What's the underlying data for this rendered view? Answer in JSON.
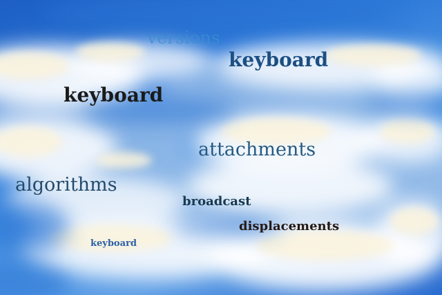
{
  "photo": {
    "subject": "sky-with-clouds",
    "colors": {
      "sky_deep": "#1d5fc4",
      "sky_mid": "#4c95e4",
      "cloud_white": "#ffffff",
      "cloud_cream": "#fbf3dc",
      "cloud_shadow": "#a9c7ea"
    }
  },
  "words": {
    "versions": "versions",
    "keyboard_top": "keyboard",
    "keyboard_left": "keyboard",
    "attachments": "attachments",
    "algorithms": "algorithms",
    "broadcast": "broadcast",
    "displacements": "displacements",
    "keyboard_small": "keyboard"
  }
}
